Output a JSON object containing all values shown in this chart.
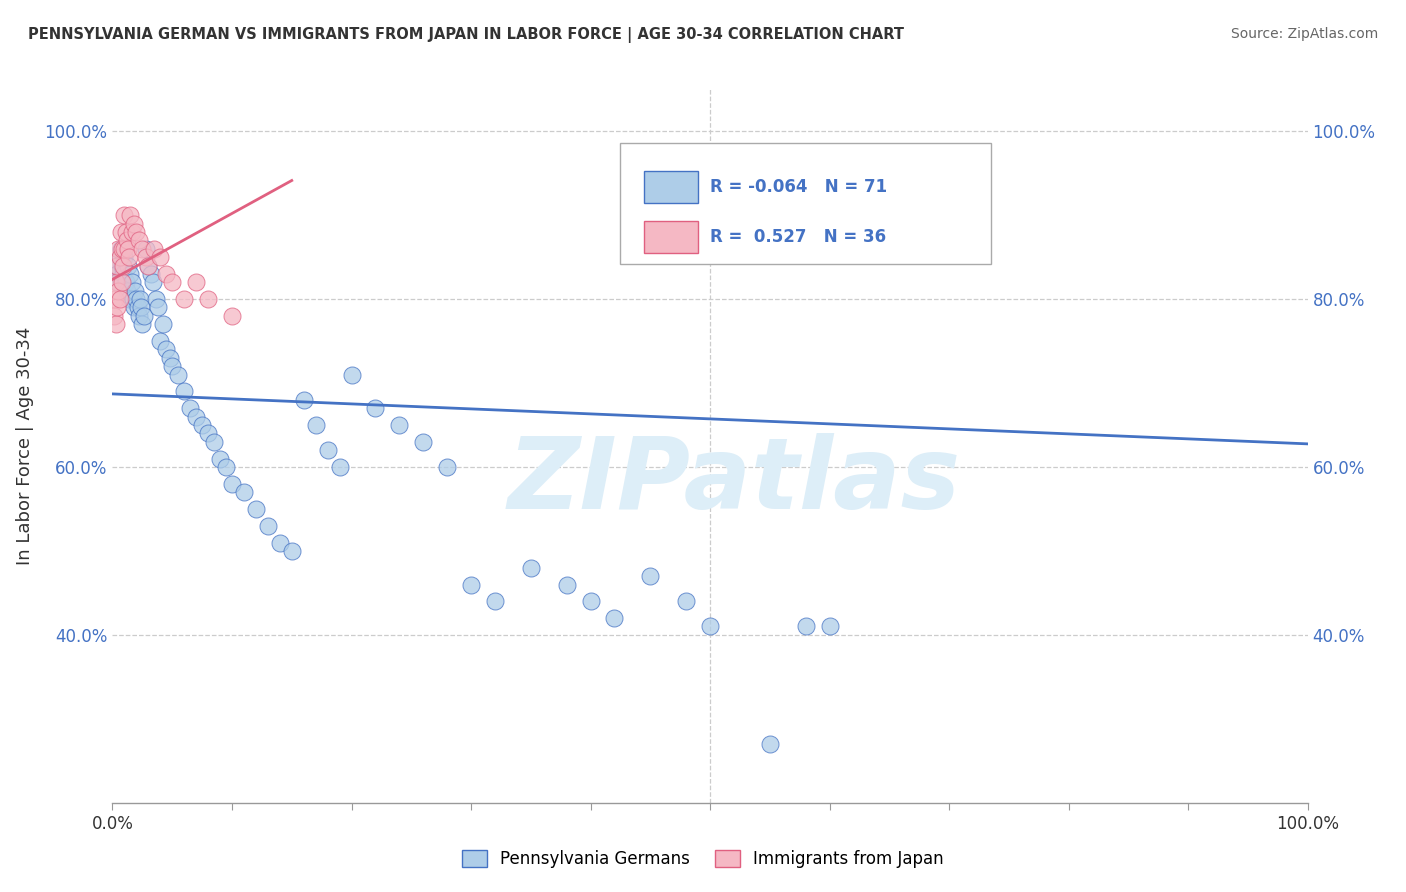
{
  "title": "PENNSYLVANIA GERMAN VS IMMIGRANTS FROM JAPAN IN LABOR FORCE | AGE 30-34 CORRELATION CHART",
  "source": "Source: ZipAtlas.com",
  "ylabel": "In Labor Force | Age 30-34",
  "blue_R": -0.064,
  "blue_N": 71,
  "pink_R": 0.527,
  "pink_N": 36,
  "blue_color": "#aecde8",
  "pink_color": "#f5b8c4",
  "blue_line_color": "#4472c4",
  "pink_line_color": "#e06080",
  "legend_blue_label": "Pennsylvania Germans",
  "legend_pink_label": "Immigrants from Japan",
  "blue_x": [
    0.3,
    0.4,
    0.5,
    0.6,
    0.7,
    0.8,
    0.9,
    1.0,
    1.1,
    1.2,
    1.3,
    1.4,
    1.5,
    1.6,
    1.7,
    1.8,
    1.9,
    2.0,
    2.1,
    2.2,
    2.3,
    2.4,
    2.5,
    2.6,
    2.8,
    3.0,
    3.2,
    3.4,
    3.6,
    3.8,
    4.0,
    4.2,
    4.5,
    4.8,
    5.0,
    5.5,
    6.0,
    6.5,
    7.0,
    7.5,
    8.0,
    8.5,
    9.0,
    9.5,
    10.0,
    11.0,
    12.0,
    13.0,
    14.0,
    15.0,
    16.0,
    17.0,
    18.0,
    19.0,
    20.0,
    22.0,
    24.0,
    26.0,
    28.0,
    30.0,
    32.0,
    35.0,
    38.0,
    40.0,
    42.0,
    45.0,
    48.0,
    50.0,
    55.0,
    58.0,
    60.0
  ],
  "blue_y": [
    84.0,
    83.0,
    82.0,
    85.0,
    86.0,
    84.0,
    83.0,
    85.0,
    82.0,
    81.0,
    84.0,
    80.0,
    83.0,
    82.0,
    80.0,
    79.0,
    81.0,
    80.0,
    79.0,
    78.0,
    80.0,
    79.0,
    77.0,
    78.0,
    86.0,
    84.0,
    83.0,
    82.0,
    80.0,
    79.0,
    75.0,
    77.0,
    74.0,
    73.0,
    72.0,
    71.0,
    69.0,
    67.0,
    66.0,
    65.0,
    64.0,
    63.0,
    61.0,
    60.0,
    58.0,
    57.0,
    55.0,
    53.0,
    51.0,
    50.0,
    68.0,
    65.0,
    62.0,
    60.0,
    71.0,
    67.0,
    65.0,
    63.0,
    60.0,
    46.0,
    44.0,
    48.0,
    46.0,
    44.0,
    42.0,
    47.0,
    44.0,
    41.0,
    27.0,
    41.0,
    41.0
  ],
  "pink_x": [
    0.1,
    0.2,
    0.3,
    0.3,
    0.4,
    0.4,
    0.5,
    0.5,
    0.6,
    0.6,
    0.7,
    0.8,
    0.8,
    0.9,
    1.0,
    1.0,
    1.1,
    1.2,
    1.3,
    1.4,
    1.5,
    1.6,
    1.8,
    2.0,
    2.2,
    2.5,
    2.8,
    3.0,
    3.5,
    4.0,
    4.5,
    5.0,
    6.0,
    7.0,
    8.0,
    10.0
  ],
  "pink_y": [
    78.0,
    80.0,
    82.0,
    77.0,
    84.0,
    79.0,
    86.0,
    81.0,
    85.0,
    80.0,
    88.0,
    86.0,
    82.0,
    84.0,
    90.0,
    86.0,
    88.0,
    87.0,
    86.0,
    85.0,
    90.0,
    88.0,
    89.0,
    88.0,
    87.0,
    86.0,
    85.0,
    84.0,
    86.0,
    85.0,
    83.0,
    82.0,
    80.0,
    82.0,
    80.0,
    78.0
  ],
  "xmin": 0.0,
  "xmax": 100.0,
  "ymin": 20.0,
  "ymax": 105.0,
  "ytick_vals": [
    40,
    60,
    80,
    100
  ],
  "ytick_labels": [
    "40.0%",
    "60.0%",
    "80.0%",
    "100.0%"
  ],
  "grid_color": "#cccccc",
  "bg_color": "#ffffff",
  "watermark_text": "ZIPatlas",
  "watermark_color": "#ddeef8"
}
